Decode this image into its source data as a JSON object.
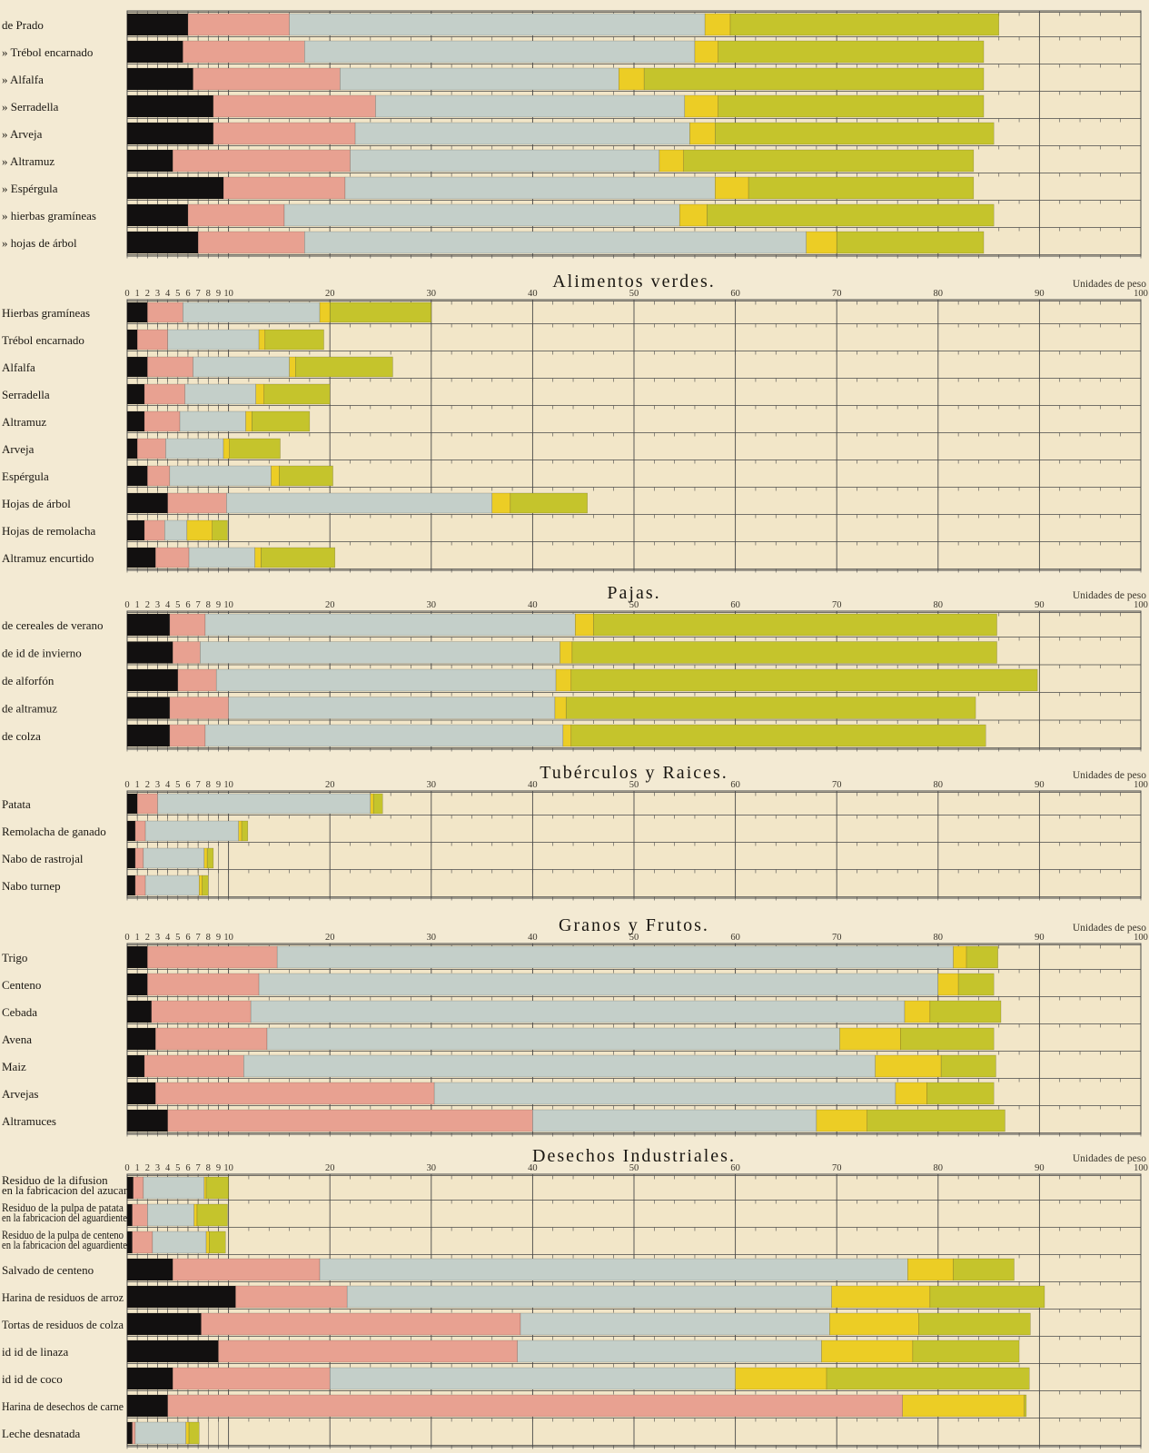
{
  "colors": {
    "background": "#f3ead3",
    "black_segment": "#121010",
    "salmon_segment": "#e8a191",
    "grey_segment": "#c4cfc9",
    "yellow_segment": "#eccd25",
    "olive_segment": "#c5c42c",
    "grid": "#4a4a4a"
  },
  "chart_data": [
    {
      "type": "bar",
      "title": "",
      "xlim": [
        0,
        100
      ],
      "units_label": "",
      "segments": [
        "black",
        "salmon",
        "grey",
        "yellow",
        "olive"
      ],
      "series": [
        {
          "label": "de Prado",
          "values": [
            6,
            10,
            41,
            2.5,
            26.5
          ]
        },
        {
          "label": "» Trébol encarnado",
          "values": [
            5.5,
            12,
            38.5,
            2.3,
            26.2
          ]
        },
        {
          "label": "» Alfalfa",
          "values": [
            6.5,
            14.5,
            27.5,
            2.5,
            33.5
          ]
        },
        {
          "label": "» Serradella",
          "values": [
            8.5,
            16,
            30.5,
            3.3,
            26.2
          ]
        },
        {
          "label": "» Arveja",
          "values": [
            8.5,
            14,
            33,
            2.5,
            27.5
          ]
        },
        {
          "label": "» Altramuz",
          "values": [
            4.5,
            17.5,
            30.5,
            2.4,
            28.6
          ]
        },
        {
          "label": "» Espérgula",
          "values": [
            9.5,
            12,
            36.5,
            3.3,
            22.2
          ]
        },
        {
          "label": "» hierbas gramíneas",
          "values": [
            6,
            9.5,
            39,
            2.7,
            28.3
          ]
        },
        {
          "label": "» hojas de árbol",
          "values": [
            7,
            10.5,
            49.5,
            3,
            14.5
          ]
        }
      ],
      "ticks": [
        {
          "value": 0,
          "label": ""
        },
        {
          "value": 1,
          "label": ""
        },
        {
          "value": 2,
          "label": ""
        },
        {
          "value": 3,
          "label": ""
        },
        {
          "value": 4,
          "label": ""
        },
        {
          "value": 5,
          "label": ""
        },
        {
          "value": 6,
          "label": ""
        },
        {
          "value": 7,
          "label": ""
        },
        {
          "value": 8,
          "label": ""
        },
        {
          "value": 9,
          "label": ""
        },
        {
          "value": 10,
          "label": ""
        },
        {
          "value": 20,
          "label": ""
        },
        {
          "value": 30,
          "label": ""
        },
        {
          "value": 40,
          "label": ""
        },
        {
          "value": 50,
          "label": ""
        },
        {
          "value": 60,
          "label": ""
        },
        {
          "value": 70,
          "label": ""
        },
        {
          "value": 80,
          "label": ""
        },
        {
          "value": 90,
          "label": ""
        },
        {
          "value": 100,
          "label": ""
        }
      ]
    },
    {
      "type": "bar",
      "title": "Alimentos verdes.",
      "xlim": [
        0,
        100
      ],
      "units_label": "Unidades de peso",
      "segments": [
        "black",
        "salmon",
        "grey",
        "yellow",
        "olive"
      ],
      "series": [
        {
          "label": "Hierbas gramíneas",
          "values": [
            2,
            3.5,
            13.5,
            1,
            10
          ]
        },
        {
          "label": "Trébol encarnado",
          "values": [
            1,
            3,
            9,
            0.6,
            5.8
          ]
        },
        {
          "label": "Alfalfa",
          "values": [
            2,
            4.5,
            9.5,
            0.6,
            9.6
          ]
        },
        {
          "label": "Serradella",
          "values": [
            1.7,
            4,
            7,
            0.8,
            6.5
          ]
        },
        {
          "label": "Altramuz",
          "values": [
            1.7,
            3.5,
            6.5,
            0.6,
            5.7
          ]
        },
        {
          "label": "Arveja",
          "values": [
            1,
            2.8,
            5.7,
            0.6,
            5
          ]
        },
        {
          "label": "Espérgula",
          "values": [
            2,
            2.2,
            10,
            0.8,
            5.3
          ]
        },
        {
          "label": "Hojas de árbol",
          "values": [
            4,
            5.8,
            26.2,
            1.8,
            7.6
          ]
        },
        {
          "label": "Hojas de remolacha",
          "values": [
            1.7,
            2,
            2.2,
            2.5,
            1.5
          ]
        },
        {
          "label": "Altramuz encurtido",
          "values": [
            2.8,
            3.3,
            6.5,
            0.6,
            7.3
          ]
        }
      ],
      "ticks": [
        {
          "value": 0,
          "label": "0"
        },
        {
          "value": 1,
          "label": "1"
        },
        {
          "value": 2,
          "label": "2"
        },
        {
          "value": 3,
          "label": "3"
        },
        {
          "value": 4,
          "label": "4"
        },
        {
          "value": 5,
          "label": "5"
        },
        {
          "value": 6,
          "label": "6"
        },
        {
          "value": 7,
          "label": "7"
        },
        {
          "value": 8,
          "label": "8"
        },
        {
          "value": 9,
          "label": "9"
        },
        {
          "value": 10,
          "label": "10"
        },
        {
          "value": 20,
          "label": "20"
        },
        {
          "value": 30,
          "label": "30"
        },
        {
          "value": 40,
          "label": "40"
        },
        {
          "value": 50,
          "label": "50"
        },
        {
          "value": 60,
          "label": "60"
        },
        {
          "value": 70,
          "label": "70"
        },
        {
          "value": 80,
          "label": "80"
        },
        {
          "value": 90,
          "label": "90"
        },
        {
          "value": 100,
          "label": "100"
        }
      ]
    },
    {
      "type": "bar",
      "title": "Pajas.",
      "xlim": [
        0,
        100
      ],
      "units_label": "Unidades de peso",
      "segments": [
        "black",
        "salmon",
        "grey",
        "yellow",
        "olive"
      ],
      "series": [
        {
          "label": "de cereales de verano",
          "values": [
            4.2,
            3.5,
            36.5,
            1.8,
            39.8
          ]
        },
        {
          "label": "de id de invierno",
          "values": [
            4.5,
            2.7,
            35.5,
            1.2,
            41.9
          ]
        },
        {
          "label": "de alforfón",
          "values": [
            5,
            3.8,
            33.5,
            1.5,
            46
          ]
        },
        {
          "label": "de altramuz",
          "values": [
            4.2,
            5.8,
            32.2,
            1.1,
            40.4
          ]
        },
        {
          "label": "de colza",
          "values": [
            4.2,
            3.5,
            35.3,
            0.8,
            40.9
          ]
        }
      ],
      "ticks": [
        {
          "value": 0,
          "label": "0"
        },
        {
          "value": 1,
          "label": "1"
        },
        {
          "value": 2,
          "label": "2"
        },
        {
          "value": 3,
          "label": "3"
        },
        {
          "value": 4,
          "label": "4"
        },
        {
          "value": 5,
          "label": "5"
        },
        {
          "value": 6,
          "label": "6"
        },
        {
          "value": 7,
          "label": "7"
        },
        {
          "value": 8,
          "label": "8"
        },
        {
          "value": 9,
          "label": "9"
        },
        {
          "value": 10,
          "label": "10"
        },
        {
          "value": 20,
          "label": "20"
        },
        {
          "value": 30,
          "label": "30"
        },
        {
          "value": 40,
          "label": "40"
        },
        {
          "value": 50,
          "label": "50"
        },
        {
          "value": 60,
          "label": "60"
        },
        {
          "value": 70,
          "label": "70"
        },
        {
          "value": 80,
          "label": "80"
        },
        {
          "value": 90,
          "label": "90"
        },
        {
          "value": 100,
          "label": "100"
        }
      ]
    },
    {
      "type": "bar",
      "title": "Tubérculos y Raices.",
      "xlim": [
        0,
        100
      ],
      "units_label": "Unidades de peso",
      "segments": [
        "black",
        "salmon",
        "grey",
        "yellow",
        "olive"
      ],
      "series": [
        {
          "label": "Patata",
          "values": [
            1,
            2,
            21,
            0.3,
            0.9
          ]
        },
        {
          "label": "Remolacha de ganado",
          "values": [
            0.8,
            1,
            9.2,
            0.3,
            0.6
          ]
        },
        {
          "label": "Nabo de rastrojal",
          "values": [
            0.8,
            0.8,
            6,
            0.3,
            0.6
          ]
        },
        {
          "label": "Nabo turnep",
          "values": [
            0.8,
            1,
            5.3,
            0.3,
            0.6
          ]
        }
      ],
      "ticks": [
        {
          "value": 0,
          "label": "0"
        },
        {
          "value": 1,
          "label": "1"
        },
        {
          "value": 2,
          "label": "2"
        },
        {
          "value": 3,
          "label": "3"
        },
        {
          "value": 4,
          "label": "4"
        },
        {
          "value": 5,
          "label": "5"
        },
        {
          "value": 6,
          "label": "6"
        },
        {
          "value": 7,
          "label": "7"
        },
        {
          "value": 8,
          "label": "8"
        },
        {
          "value": 9,
          "label": "9"
        },
        {
          "value": 10,
          "label": "10"
        },
        {
          "value": 20,
          "label": "20"
        },
        {
          "value": 30,
          "label": "30"
        },
        {
          "value": 40,
          "label": "40"
        },
        {
          "value": 50,
          "label": "50"
        },
        {
          "value": 60,
          "label": "60"
        },
        {
          "value": 70,
          "label": "70"
        },
        {
          "value": 80,
          "label": "80"
        },
        {
          "value": 90,
          "label": "90"
        },
        {
          "value": 100,
          "label": "100"
        }
      ]
    },
    {
      "type": "bar",
      "title": "Granos y Frutos.",
      "xlim": [
        0,
        100
      ],
      "units_label": "Unidades de peso",
      "segments": [
        "black",
        "salmon",
        "grey",
        "yellow",
        "olive"
      ],
      "series": [
        {
          "label": "Trigo",
          "values": [
            2,
            12.8,
            66.7,
            1.3,
            3.1
          ]
        },
        {
          "label": "Centeno",
          "values": [
            2,
            11,
            67,
            2,
            3.5
          ]
        },
        {
          "label": "Cebada",
          "values": [
            2.4,
            9.8,
            64.5,
            2.5,
            7
          ]
        },
        {
          "label": "Avena",
          "values": [
            2.8,
            11,
            56.5,
            6,
            9.2
          ]
        },
        {
          "label": "Maiz",
          "values": [
            1.7,
            9.8,
            62.3,
            6.5,
            5.4
          ]
        },
        {
          "label": "Arvejas",
          "values": [
            2.8,
            27.5,
            45.5,
            3.1,
            6.6
          ]
        },
        {
          "label": "Altramuces",
          "values": [
            4,
            36,
            28,
            5,
            13.6
          ]
        }
      ],
      "ticks": [
        {
          "value": 0,
          "label": "0"
        },
        {
          "value": 1,
          "label": "1"
        },
        {
          "value": 2,
          "label": "2"
        },
        {
          "value": 3,
          "label": "3"
        },
        {
          "value": 4,
          "label": "4"
        },
        {
          "value": 5,
          "label": "5"
        },
        {
          "value": 6,
          "label": "6"
        },
        {
          "value": 7,
          "label": "7"
        },
        {
          "value": 8,
          "label": "8"
        },
        {
          "value": 9,
          "label": "9"
        },
        {
          "value": 10,
          "label": "10"
        },
        {
          "value": 20,
          "label": "20"
        },
        {
          "value": 30,
          "label": "30"
        },
        {
          "value": 40,
          "label": "40"
        },
        {
          "value": 50,
          "label": "50"
        },
        {
          "value": 60,
          "label": "60"
        },
        {
          "value": 70,
          "label": "70"
        },
        {
          "value": 80,
          "label": "80"
        },
        {
          "value": 90,
          "label": "90"
        },
        {
          "value": 100,
          "label": "100"
        }
      ]
    },
    {
      "type": "bar",
      "title": "Desechos Industriales.",
      "xlim": [
        0,
        100
      ],
      "units_label": "Unidades de peso",
      "segments": [
        "black",
        "salmon",
        "grey",
        "yellow",
        "olive"
      ],
      "series": [
        {
          "label": "Residuo de la difusion",
          "sublabel": "en la fabricacion del azucar",
          "values": [
            0.6,
            1,
            6,
            0.2,
            2.2
          ]
        },
        {
          "label": "Residuo de la pulpa de patata",
          "sublabel": "en la fabricacion del aguardiente",
          "values": [
            0.5,
            1.5,
            4.6,
            0.3,
            3
          ]
        },
        {
          "label": "Residuo de la pulpa de centeno",
          "sublabel": "en la fabricacion del aguardiente",
          "values": [
            0.5,
            2,
            5.3,
            0.3,
            1.6
          ]
        },
        {
          "label": "Salvado de centeno",
          "values": [
            4.5,
            14.5,
            58,
            4.5,
            6
          ]
        },
        {
          "label": "Harina de residuos de arroz",
          "values": [
            10.7,
            11,
            47.8,
            9.7,
            11.3
          ]
        },
        {
          "label": "Tortas de residuos de colza",
          "values": [
            7.3,
            31.5,
            30.5,
            8.8,
            11
          ]
        },
        {
          "label": "id id de linaza",
          "values": [
            9,
            29.5,
            30,
            9,
            10.5
          ]
        },
        {
          "label": "id id de coco",
          "values": [
            4.5,
            15.5,
            40,
            9,
            20
          ]
        },
        {
          "label": "Harina de desechos de carne",
          "values": [
            4,
            72.5,
            0,
            12,
            0.2
          ]
        },
        {
          "label": "Leche desnatada",
          "values": [
            0.5,
            0.3,
            5,
            0.3,
            1
          ]
        }
      ],
      "ticks": [
        {
          "value": 0,
          "label": "0"
        },
        {
          "value": 1,
          "label": "1"
        },
        {
          "value": 2,
          "label": "2"
        },
        {
          "value": 3,
          "label": "3"
        },
        {
          "value": 4,
          "label": "4"
        },
        {
          "value": 5,
          "label": "5"
        },
        {
          "value": 6,
          "label": "6"
        },
        {
          "value": 7,
          "label": "7"
        },
        {
          "value": 8,
          "label": "8"
        },
        {
          "value": 9,
          "label": "9"
        },
        {
          "value": 10,
          "label": "10"
        },
        {
          "value": 20,
          "label": "20"
        },
        {
          "value": 30,
          "label": "30"
        },
        {
          "value": 40,
          "label": "40"
        },
        {
          "value": 50,
          "label": "50"
        },
        {
          "value": 60,
          "label": "60"
        },
        {
          "value": 70,
          "label": "70"
        },
        {
          "value": 80,
          "label": "80"
        },
        {
          "value": 90,
          "label": "90"
        },
        {
          "value": 100,
          "label": "100"
        }
      ]
    }
  ]
}
